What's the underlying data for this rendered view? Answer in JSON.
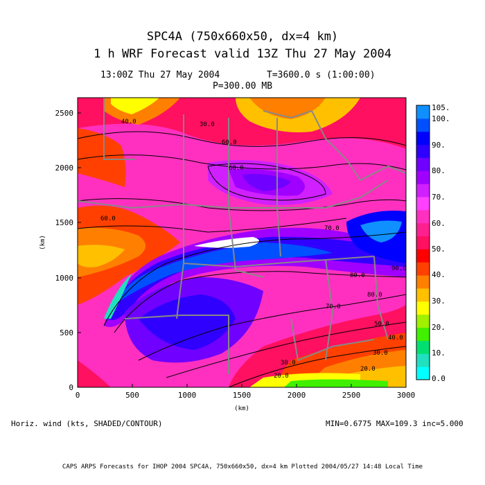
{
  "header": {
    "title_line1": "SPC4A (750x660x50, dx=4 km)",
    "title_line2": "1 h WRF Forecast valid 13Z Thu 27 May 2004",
    "time_label": "13:00Z Thu 27 May 2004",
    "t_label": "T=3600.0 s (1:00:00)",
    "pressure_label": "P=300.00 MB"
  },
  "axes": {
    "x_label": "(km)",
    "y_label": "(km)",
    "x_ticks": [
      "0",
      "500",
      "1000",
      "1500",
      "2000",
      "2500",
      "3000"
    ],
    "y_ticks": [
      "0",
      "500",
      "1000",
      "1500",
      "2000",
      "2500"
    ],
    "x_range": [
      0,
      3000
    ],
    "y_range": [
      0,
      2640
    ]
  },
  "colorbar": {
    "labels": [
      "105.",
      "100.",
      "90.",
      "80.",
      "70.",
      "60.",
      "50.",
      "40.",
      "30.",
      "20.",
      "10.",
      "0.0"
    ],
    "colors": [
      "#00ffff",
      "#20e0c0",
      "#00e070",
      "#40f000",
      "#a0f000",
      "#ffff00",
      "#ffc000",
      "#ff8000",
      "#ff4000",
      "#ff0000",
      "#ff1060",
      "#ff2090",
      "#ff30c0",
      "#ff40ff",
      "#d020ff",
      "#a000ff",
      "#7000ff",
      "#3000ff",
      "#0000ff",
      "#0050ff",
      "#1090ff"
    ]
  },
  "contour_labels": [
    "40.0",
    "30.0",
    "60.0",
    "60.0",
    "70.0",
    "60.0",
    "80.0",
    "70.0",
    "80.0",
    "90.0",
    "50.0",
    "40.0",
    "30.0",
    "20.0",
    "20.0",
    "30.0"
  ],
  "bottom_left_note": "Horiz. wind (kts, SHADED/CONTOUR)",
  "bottom_right_note": "MIN=0.6775 MAX=109.3 inc=5.000",
  "footer": "CAPS ARPS Forecasts for IHOP 2004   SPC4A, 750x660x50, dx=4 km   Plotted 2004/05/27 14:48 Local Time"
}
